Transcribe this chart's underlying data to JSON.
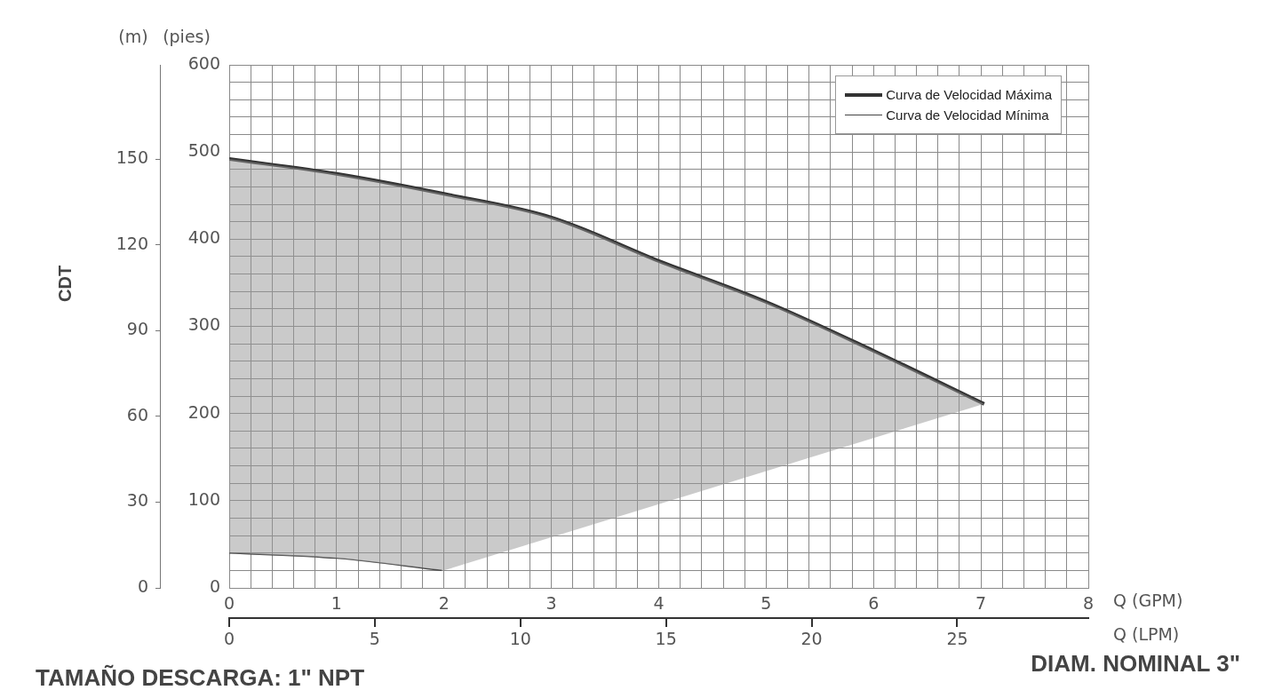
{
  "chart_data": {
    "type": "line",
    "xlabel": "Q (GPM)",
    "x2label": "Q (LPM)",
    "ylabel": "(pies)",
    "y2label": "(m)",
    "xlim": [
      0,
      8
    ],
    "xticks": [
      0,
      {
        "value": 0.2,
        "label": null
      },
      {
        "value": 0.4,
        "label": null
      },
      {
        "value": 0.6,
        "label": null
      },
      {
        "value": 0.8,
        "label": null
      },
      1,
      {
        "value": 1.2,
        "label": null
      },
      {
        "value": 1.4,
        "label": null
      },
      {
        "value": 1.6,
        "label": null
      },
      {
        "value": 1.8,
        "label": null
      },
      2,
      {
        "value": 2.2,
        "label": null
      },
      {
        "value": 2.4,
        "label": null
      },
      {
        "value": 2.6,
        "label": null
      },
      {
        "value": 2.8,
        "label": null
      },
      3,
      {
        "value": 3.2,
        "label": null
      },
      {
        "value": 3.4,
        "label": null
      },
      {
        "value": 3.6,
        "label": null
      },
      {
        "value": 3.8,
        "label": null
      },
      4,
      {
        "value": 4.2,
        "label": null
      },
      {
        "value": 4.4,
        "label": null
      },
      {
        "value": 4.6,
        "label": null
      },
      {
        "value": 4.8,
        "label": null
      },
      5,
      {
        "value": 5.2,
        "label": null
      },
      {
        "value": 5.4,
        "label": null
      },
      {
        "value": 5.6,
        "label": null
      },
      {
        "value": 5.8,
        "label": null
      },
      6,
      {
        "value": 6.2,
        "label": null
      },
      {
        "value": 6.4,
        "label": null
      },
      {
        "value": 6.6,
        "label": null
      },
      {
        "value": 6.8,
        "label": null
      },
      7,
      {
        "value": 7.2,
        "label": null
      },
      {
        "value": 7.4,
        "label": null
      },
      {
        "value": 7.6,
        "label": null
      },
      {
        "value": 7.8,
        "label": null
      },
      8
    ],
    "ylim": [
      0,
      600
    ],
    "yticks": [
      0,
      {
        "value": 20,
        "label": null
      },
      {
        "value": 40,
        "label": null
      },
      {
        "value": 60,
        "label": null
      },
      {
        "value": 80,
        "label": null
      },
      100,
      {
        "value": 120,
        "label": null
      },
      {
        "value": 140,
        "label": null
      },
      {
        "value": 160,
        "label": null
      },
      {
        "value": 180,
        "label": null
      },
      200,
      {
        "value": 220,
        "label": null
      },
      {
        "value": 240,
        "label": null
      },
      {
        "value": 260,
        "label": null
      },
      {
        "value": 280,
        "label": null
      },
      300,
      {
        "value": 320,
        "label": null
      },
      {
        "value": 340,
        "label": null
      },
      {
        "value": 360,
        "label": null
      },
      {
        "value": 380,
        "label": null
      },
      400,
      {
        "value": 420,
        "label": null
      },
      {
        "value": 440,
        "label": null
      },
      {
        "value": 460,
        "label": null
      },
      {
        "value": 480,
        "label": null
      },
      500,
      {
        "value": 520,
        "label": null
      },
      {
        "value": 540,
        "label": null
      },
      {
        "value": 560,
        "label": null
      },
      {
        "value": 580,
        "label": null
      },
      600
    ],
    "y2lim": [
      0,
      183
    ],
    "y2ticks": [
      0,
      30,
      60,
      90,
      120,
      150
    ],
    "x2lim": [
      0,
      29.5
    ],
    "x2ticks": [
      0,
      5,
      10,
      15,
      20,
      25
    ],
    "grid": true,
    "legend": "top right",
    "marker": "none",
    "series": [
      {
        "name": "Curva de Velocidad Máxima",
        "color": "#333333",
        "x": [
          0,
          1,
          2,
          3,
          4,
          5,
          6,
          7.03
        ],
        "values": [
          492,
          475,
          452,
          425,
          375,
          328,
          272,
          211
        ],
        "upper": [
          492,
          475,
          452,
          425,
          375,
          328,
          272,
          211
        ],
        "lower": [
          40,
          34,
          20,
          58,
          96,
          134,
          172,
          211
        ]
      },
      {
        "name": "Curva de Velocidad Mínima",
        "color": "#444444",
        "x": [
          0,
          1,
          1.98
        ],
        "values": [
          40,
          34,
          20
        ]
      }
    ],
    "annotations": [
      "CDT",
      "TAMAÑO DESCARGA: 1\" NPT",
      "DIAM. NOMINAL 3\""
    ]
  }
}
